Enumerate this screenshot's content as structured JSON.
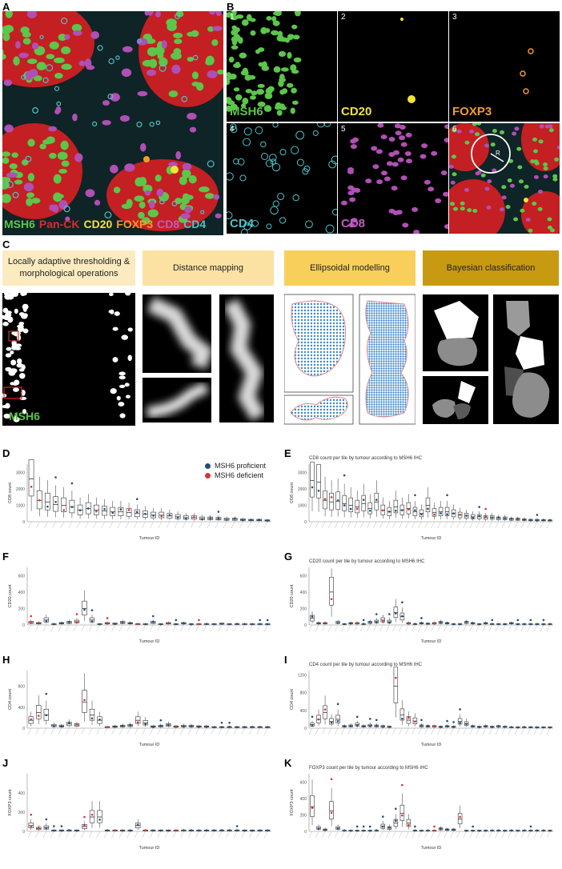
{
  "panels": {
    "A": "A",
    "B": "B",
    "C": "C",
    "D": "D",
    "E": "E",
    "F": "F",
    "G": "G",
    "H": "H",
    "I": "I",
    "J": "J",
    "K": "K"
  },
  "panel_a": {
    "legend": [
      {
        "text": "MSH6",
        "color": "#5cc64a"
      },
      {
        "text": "Pan-CK",
        "color": "#e0282a"
      },
      {
        "text": "CD20",
        "color": "#f1e338"
      },
      {
        "text": "FOXP3",
        "color": "#f39a2e"
      },
      {
        "text": "CD8",
        "color": "#c25bc0"
      },
      {
        "text": "CD4",
        "color": "#4cc3c8"
      }
    ]
  },
  "panel_b": {
    "tiles": [
      {
        "num": "1",
        "name": "MSH6",
        "color": "#5cc64a"
      },
      {
        "num": "2",
        "name": "CD20",
        "color": "#f1e338"
      },
      {
        "num": "3",
        "name": "FOXP3",
        "color": "#f39a2e"
      },
      {
        "num": "4",
        "name": "CD4",
        "color": "#4cc3c8"
      },
      {
        "num": "5",
        "name": "CD8",
        "color": "#c25bc0"
      },
      {
        "num": "6",
        "name": "",
        "color": "#ffffff"
      }
    ],
    "radius_label": "R"
  },
  "panel_c": {
    "steps": [
      {
        "label": "Locally adaptive thresholding & morphological operations",
        "color": "#fcebc0"
      },
      {
        "label": "Distance mapping",
        "color": "#fbe2a3"
      },
      {
        "label": "Ellipsoidal modelling",
        "color": "#f7cf5a"
      },
      {
        "label": "Bayesian classification",
        "color": "#c89a12"
      }
    ],
    "mask_label": "MSH6"
  },
  "legend": {
    "proficient": "MSH6 proficient",
    "deficient": "MSH6 deficient",
    "proficient_color": "#1f4e79",
    "deficient_color": "#d6343a"
  },
  "chart_data": [
    {
      "panel": "D",
      "type": "boxplot",
      "title": "",
      "xlabel": "Tumour ID",
      "ylabel": "CD8 count",
      "ylim": [
        0,
        3500
      ],
      "yticks": [
        0,
        1000,
        2000,
        3000
      ],
      "tumours": 30,
      "medians": [
        2600,
        1300,
        1200,
        1050,
        1000,
        900,
        700,
        800,
        700,
        650,
        600,
        600,
        550,
        500,
        450,
        400,
        400,
        350,
        300,
        250,
        250,
        200,
        200,
        180,
        150,
        150,
        120,
        100,
        100,
        80
      ],
      "deficient_tumours": [
        1,
        2,
        5,
        9,
        13,
        17,
        21
      ]
    },
    {
      "panel": "E",
      "type": "boxplot",
      "title": "CD8 count per tile by tumour according to MSH6 IHC",
      "xlabel": "Tumour ID",
      "ylabel": "CD8 count",
      "ylim": [
        0,
        3500
      ],
      "yticks": [
        0,
        1000,
        2000,
        3000
      ],
      "tumours": 38,
      "medians": [
        2500,
        2400,
        1300,
        1200,
        1250,
        1100,
        1000,
        900,
        1100,
        800,
        1200,
        700,
        600,
        900,
        700,
        800,
        600,
        500,
        1000,
        550,
        600,
        600,
        500,
        400,
        350,
        300,
        300,
        250,
        250,
        200,
        200,
        150,
        150,
        120,
        100,
        100,
        90,
        80
      ],
      "deficient_tumours": [
        3,
        4,
        8,
        12,
        16,
        20,
        24,
        28
      ]
    },
    {
      "panel": "F",
      "type": "boxplot",
      "title": "",
      "xlabel": "Tumour ID",
      "ylabel": "CD20 count",
      "ylim": [
        0,
        700
      ],
      "yticks": [
        0,
        200,
        400,
        600
      ],
      "tumours": 32,
      "medians": [
        30,
        20,
        60,
        10,
        20,
        30,
        40,
        200,
        60,
        10,
        20,
        15,
        30,
        20,
        10,
        10,
        30,
        10,
        20,
        10,
        20,
        10,
        10,
        10,
        10,
        15,
        10,
        10,
        10,
        10,
        10,
        10
      ],
      "deficient_tumours": [
        1,
        2,
        7,
        11,
        15,
        19,
        23
      ]
    },
    {
      "panel": "G",
      "type": "boxplot",
      "title": "CD20 count per tile by tumour according to MSH6 IHC",
      "xlabel": "Tumour ID",
      "ylabel": "CD20 count",
      "ylim": [
        0,
        700
      ],
      "yticks": [
        0,
        200,
        400,
        600
      ],
      "tumours": 38,
      "medians": [
        80,
        20,
        20,
        400,
        30,
        10,
        20,
        20,
        10,
        30,
        40,
        60,
        40,
        150,
        100,
        20,
        10,
        20,
        15,
        20,
        30,
        20,
        10,
        10,
        30,
        20,
        10,
        20,
        10,
        10,
        10,
        20,
        10,
        10,
        10,
        10,
        10,
        10
      ],
      "deficient_tumours": [
        3,
        4,
        8,
        12,
        16,
        20
      ]
    },
    {
      "panel": "H",
      "type": "boxplot",
      "title": "",
      "xlabel": "Tumour ID",
      "ylabel": "CD4 count",
      "ylim": [
        0,
        1100
      ],
      "yticks": [
        0,
        400,
        800
      ],
      "tumours": 32,
      "medians": [
        150,
        300,
        250,
        50,
        40,
        80,
        60,
        500,
        250,
        150,
        20,
        30,
        40,
        50,
        150,
        100,
        30,
        40,
        60,
        30,
        40,
        40,
        30,
        30,
        20,
        20,
        20,
        20,
        20,
        20,
        20,
        20
      ],
      "deficient_tumours": [
        1,
        2,
        7,
        8,
        11,
        15,
        20
      ]
    },
    {
      "panel": "I",
      "type": "boxplot",
      "title": "CD4 count per tile by tumour according to MSH6 IHC",
      "xlabel": "Tumour ID",
      "ylabel": "CD4 count",
      "ylim": [
        0,
        1300
      ],
      "yticks": [
        0,
        400,
        800,
        1200
      ],
      "tumours": 38,
      "medians": [
        80,
        200,
        350,
        150,
        200,
        40,
        50,
        80,
        40,
        60,
        50,
        40,
        30,
        950,
        300,
        180,
        160,
        50,
        40,
        40,
        30,
        40,
        30,
        150,
        100,
        40,
        30,
        40,
        30,
        40,
        30,
        20,
        20,
        20,
        20,
        20,
        20,
        20
      ],
      "deficient_tumours": [
        2,
        3,
        14,
        16,
        17,
        20
      ]
    },
    {
      "panel": "J",
      "type": "boxplot",
      "title": "",
      "xlabel": "Tumour ID",
      "ylabel": "FOXP3 count",
      "ylim": [
        0,
        600
      ],
      "yticks": [
        0,
        200,
        400
      ],
      "tumours": 32,
      "medians": [
        60,
        30,
        40,
        10,
        10,
        10,
        10,
        50,
        150,
        150,
        10,
        10,
        10,
        10,
        60,
        10,
        10,
        10,
        10,
        10,
        10,
        10,
        10,
        10,
        10,
        10,
        10,
        10,
        10,
        10,
        10,
        10
      ],
      "deficient_tumours": [
        1,
        2,
        8,
        9,
        12,
        16,
        20
      ]
    },
    {
      "panel": "K",
      "type": "boxplot",
      "title": "FOXP3 count per tile by tumour according to MSH6 IHC",
      "xlabel": "Tumour ID",
      "ylabel": "FOXP3 count",
      "ylim": [
        0,
        700
      ],
      "yticks": [
        0,
        200,
        400,
        600
      ],
      "tumours": 38,
      "medians": [
        300,
        40,
        20,
        250,
        40,
        10,
        10,
        10,
        10,
        10,
        10,
        60,
        40,
        100,
        220,
        100,
        10,
        10,
        10,
        10,
        30,
        20,
        20,
        150,
        10,
        10,
        10,
        10,
        10,
        10,
        10,
        10,
        10,
        10,
        10,
        10,
        10,
        10
      ],
      "deficient_tumours": [
        1,
        4,
        15,
        16,
        20,
        24
      ]
    }
  ]
}
